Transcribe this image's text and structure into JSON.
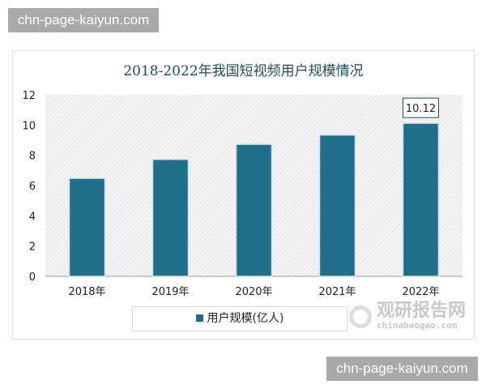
{
  "watermark_top": "chn-page-kaiyun.com",
  "watermark_bottom": "chn-page-kaiyun.com",
  "logo": {
    "name": "观研报告网",
    "url": "chinabaogao.com"
  },
  "chart_data": {
    "type": "bar",
    "title": "2018-2022年我国短视频用户规模情况",
    "categories": [
      "2018年",
      "2019年",
      "2020年",
      "2021年",
      "2022年"
    ],
    "series": [
      {
        "name": "用户规模(亿人)",
        "values": [
          6.48,
          7.73,
          8.73,
          9.34,
          10.12
        ],
        "color": "#1f6f8b"
      }
    ],
    "data_labels": [
      {
        "index": 4,
        "text": "10.12"
      }
    ],
    "yticks": [
      "0",
      "2",
      "4",
      "6",
      "8",
      "10",
      "12"
    ],
    "ylim": [
      0,
      12
    ],
    "grid": false,
    "legend": "bottom",
    "xlabel": "",
    "ylabel": ""
  }
}
